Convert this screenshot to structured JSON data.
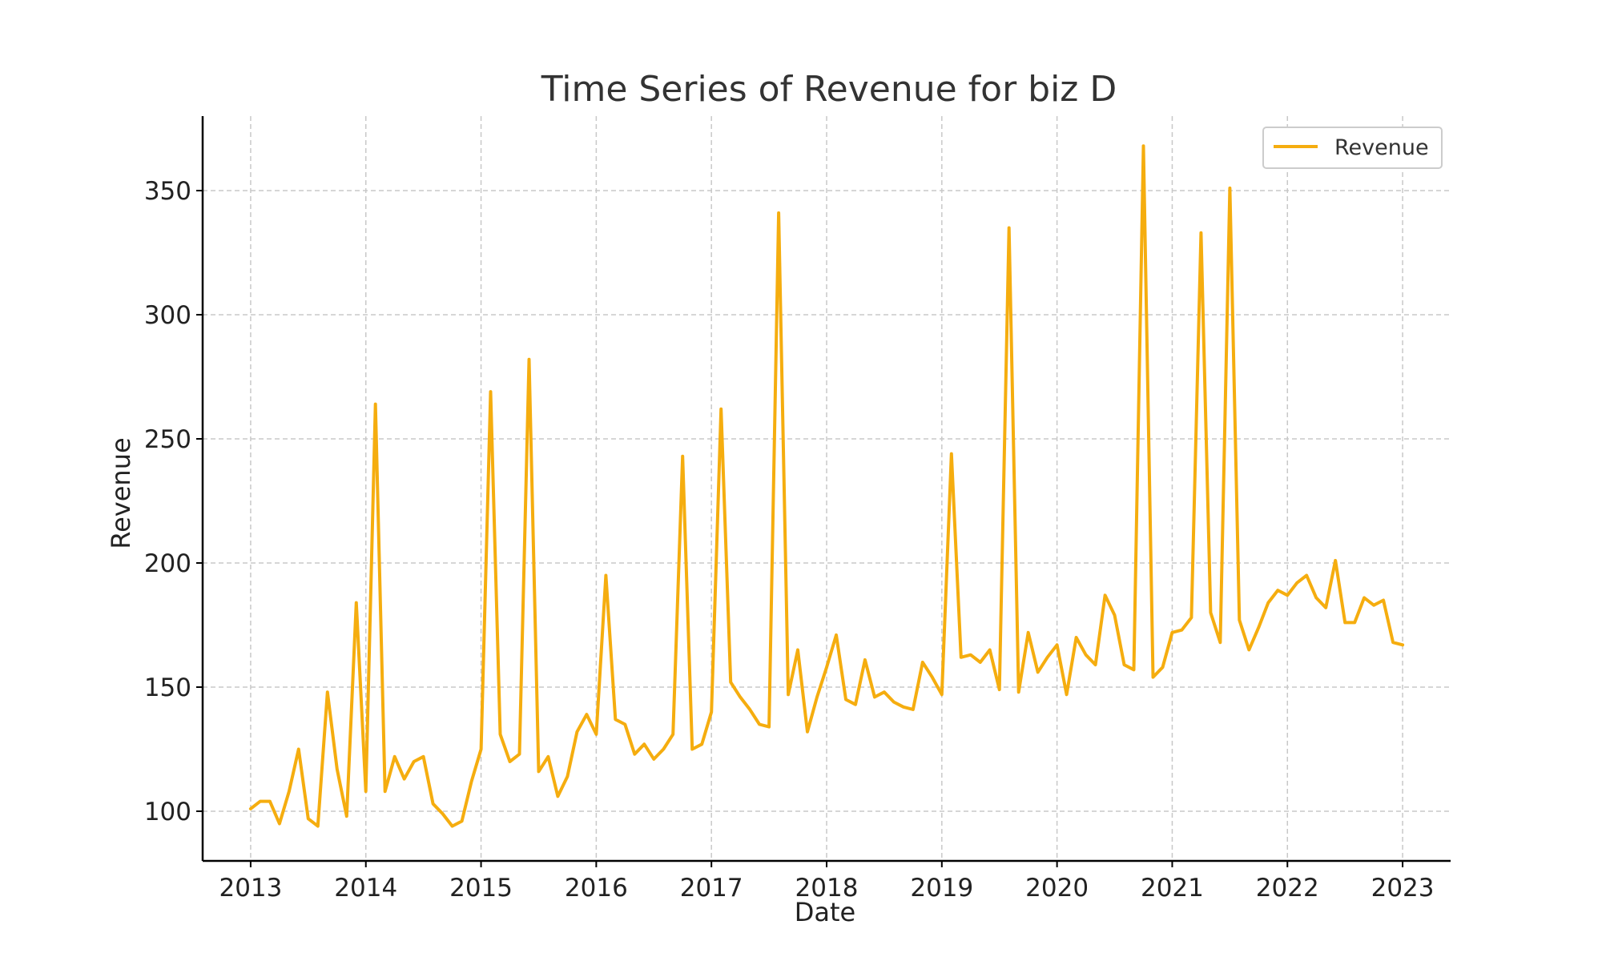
{
  "chart_data": {
    "type": "line",
    "title": "Time Series of Revenue for biz D",
    "xlabel": "Date",
    "ylabel": "Revenue",
    "x_ticks": [
      "2013",
      "2014",
      "2015",
      "2016",
      "2017",
      "2018",
      "2019",
      "2020",
      "2021",
      "2022",
      "2023"
    ],
    "y_ticks": [
      100,
      150,
      200,
      250,
      300,
      350
    ],
    "xlim": [
      "2012-08",
      "2023-06"
    ],
    "ylim": [
      80,
      380
    ],
    "grid": true,
    "legend_position": "top-right",
    "colors": {
      "line": "#f5ad0f",
      "grid": "#c8c8c8",
      "axis": "#000000"
    },
    "series": [
      {
        "name": "Revenue",
        "x": [
          "2013-01",
          "2013-02",
          "2013-03",
          "2013-04",
          "2013-05",
          "2013-06",
          "2013-07",
          "2013-08",
          "2013-09",
          "2013-10",
          "2013-11",
          "2013-12",
          "2014-01",
          "2014-02",
          "2014-03",
          "2014-04",
          "2014-05",
          "2014-06",
          "2014-07",
          "2014-08",
          "2014-09",
          "2014-10",
          "2014-11",
          "2014-12",
          "2015-01",
          "2015-02",
          "2015-03",
          "2015-04",
          "2015-05",
          "2015-06",
          "2015-07",
          "2015-08",
          "2015-09",
          "2015-10",
          "2015-11",
          "2015-12",
          "2016-01",
          "2016-02",
          "2016-03",
          "2016-04",
          "2016-05",
          "2016-06",
          "2016-07",
          "2016-08",
          "2016-09",
          "2016-10",
          "2016-11",
          "2016-12",
          "2017-01",
          "2017-02",
          "2017-03",
          "2017-04",
          "2017-05",
          "2017-06",
          "2017-07",
          "2017-08",
          "2017-09",
          "2017-10",
          "2017-11",
          "2017-12",
          "2018-01",
          "2018-02",
          "2018-03",
          "2018-04",
          "2018-05",
          "2018-06",
          "2018-07",
          "2018-08",
          "2018-09",
          "2018-10",
          "2018-11",
          "2018-12",
          "2019-01",
          "2019-02",
          "2019-03",
          "2019-04",
          "2019-05",
          "2019-06",
          "2019-07",
          "2019-08",
          "2019-09",
          "2019-10",
          "2019-11",
          "2019-12",
          "2020-01",
          "2020-02",
          "2020-03",
          "2020-04",
          "2020-05",
          "2020-06",
          "2020-07",
          "2020-08",
          "2020-09",
          "2020-10",
          "2020-11",
          "2020-12",
          "2021-01",
          "2021-02",
          "2021-03",
          "2021-04",
          "2021-05",
          "2021-06",
          "2021-07",
          "2021-08",
          "2021-09",
          "2021-10",
          "2021-11",
          "2021-12",
          "2022-01",
          "2022-02",
          "2022-03",
          "2022-04",
          "2022-05",
          "2022-06",
          "2022-07",
          "2022-08",
          "2022-09",
          "2022-10",
          "2022-11",
          "2022-12",
          "2023-01"
        ],
        "values": [
          101,
          104,
          104,
          95,
          108,
          125,
          97,
          94,
          148,
          117,
          98,
          184,
          108,
          264,
          108,
          122,
          113,
          120,
          122,
          103,
          99,
          94,
          96,
          112,
          125,
          269,
          131,
          120,
          123,
          282,
          116,
          122,
          106,
          114,
          132,
          139,
          131,
          195,
          137,
          135,
          123,
          127,
          121,
          125,
          131,
          243,
          125,
          127,
          140,
          262,
          152,
          146,
          141,
          135,
          134,
          341,
          147,
          165,
          132,
          146,
          158,
          171,
          145,
          143,
          161,
          146,
          148,
          144,
          142,
          141,
          160,
          154,
          147,
          244,
          162,
          163,
          160,
          165,
          149,
          335,
          148,
          172,
          156,
          162,
          167,
          147,
          170,
          163,
          159,
          187,
          179,
          159,
          157,
          368,
          154,
          158,
          172,
          173,
          178,
          333,
          180,
          168,
          351,
          177,
          165,
          174,
          184,
          189,
          187,
          192,
          195,
          186,
          182,
          201,
          176,
          176,
          186,
          183,
          185,
          168,
          167
        ]
      }
    ]
  }
}
